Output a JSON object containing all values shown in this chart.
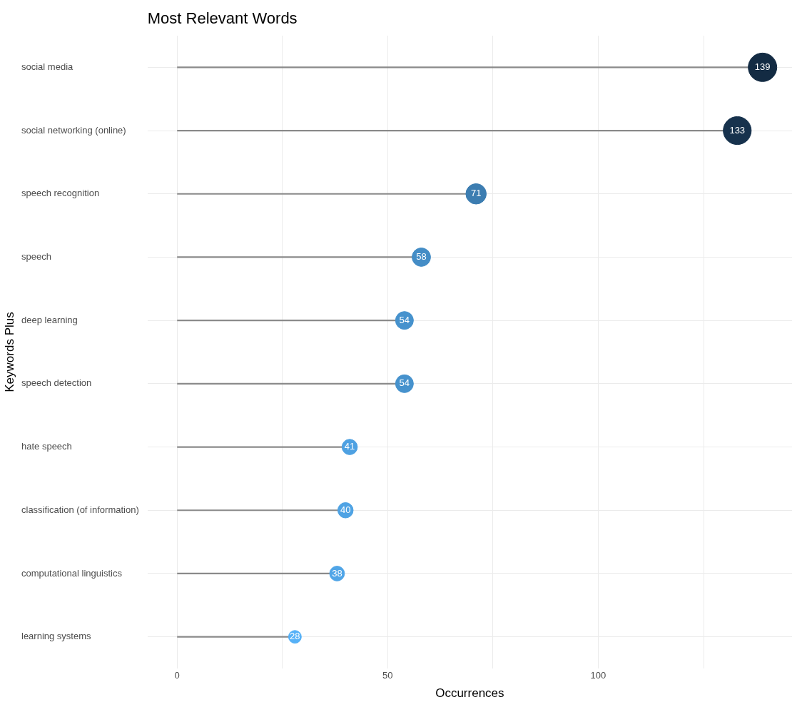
{
  "chart_data": {
    "type": "lollipop",
    "orientation": "horizontal",
    "title": "Most Relevant Words",
    "xlabel": "Occurrences",
    "ylabel": "Keywords Plus",
    "categories": [
      "social media",
      "social networking (online)",
      "speech recognition",
      "speech",
      "deep learning",
      "speech detection",
      "hate speech",
      "classification (of information)",
      "computational linguistics",
      "learning systems"
    ],
    "values": [
      139,
      133,
      71,
      58,
      54,
      54,
      41,
      40,
      38,
      28
    ],
    "sizes": [
      1,
      0.96,
      0.51,
      0.42,
      0.39,
      0.39,
      0.29,
      0.29,
      0.27,
      0.2
    ],
    "colors": [
      "#132b43",
      "#17324d",
      "#3c7db1",
      "#448dc6",
      "#4692cd",
      "#4692cd",
      "#4ea1e2",
      "#4fa3e4",
      "#50a5e7",
      "#56b1f7"
    ],
    "xlim": [
      -7,
      146
    ],
    "xticks": [
      0,
      {
        "value": 25,
        "label": null
      },
      50,
      {
        "value": 75,
        "label": null
      },
      100,
      {
        "value": 125,
        "label": null
      }
    ],
    "grid": true,
    "data_labels": true
  }
}
